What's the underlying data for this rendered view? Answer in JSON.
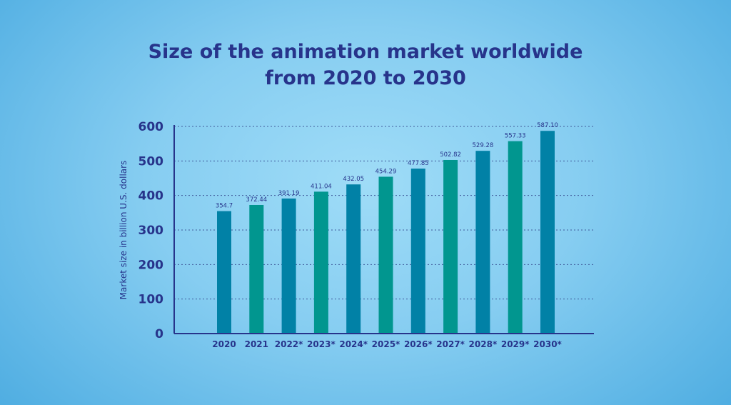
{
  "chart_data": {
    "type": "bar",
    "title_line1": "Size of the animation market worldwide",
    "title_line2": "from 2020 to 2030",
    "xlabel": "",
    "ylabel": "Market size in billion U.S. dollars",
    "categories": [
      "2020",
      "2021",
      "2022*",
      "2023*",
      "2024*",
      "2025*",
      "2026*",
      "2027*",
      "2028*",
      "2029*",
      "2030*"
    ],
    "values": [
      354.7,
      372.44,
      391.19,
      411.04,
      432.05,
      454.29,
      477.85,
      502.82,
      529.28,
      557.33,
      587.1
    ],
    "value_labels": [
      "354.7",
      "372.44",
      "391.19",
      "411.04",
      "432.05",
      "454.29",
      "477.85",
      "502.82",
      "529.28",
      "557.33",
      "587.10"
    ],
    "ylim": [
      0,
      600
    ],
    "yticks": [
      0,
      100,
      200,
      300,
      400,
      500,
      600
    ],
    "grid": true,
    "legend": "none",
    "colors": {
      "bar_a": "#0181a6",
      "bar_b": "#01968f",
      "axis": "#27348b",
      "grid": "#3f5a9a",
      "text": "#27348b"
    }
  }
}
